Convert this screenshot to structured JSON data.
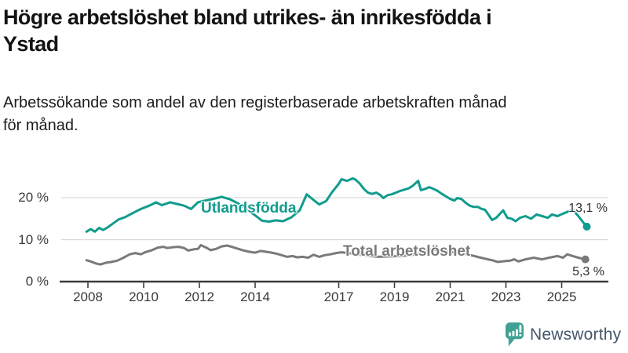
{
  "header": {
    "title_line1": "Högre arbetslöshet bland utrikes- än inrikesfödda i",
    "title_line2": "Ystad",
    "subtitle_line1": "Arbetssökande som andel av den registerbaserade arbetskraften månad",
    "subtitle_line2": "för månad."
  },
  "chart_data": {
    "type": "line",
    "title": "Högre arbetslöshet bland utrikes- än inrikesfödda i Ystad",
    "subtitle": "Arbetssökande som andel av den registerbaserade arbetskraften månad för månad.",
    "x_axis": {
      "ticks": [
        2008,
        2010,
        2012,
        2014,
        2017,
        2019,
        2021,
        2023,
        2025
      ],
      "tick_labels": [
        "2008",
        "2010",
        "2012",
        "2014",
        "2017",
        "2019",
        "2021",
        "2023",
        "2025"
      ],
      "range": [
        2007.8,
        2026.3
      ]
    },
    "y_axis": {
      "ticks": [
        0,
        10,
        20
      ],
      "tick_labels": [
        "0 %",
        "10 %",
        "20 %"
      ],
      "range": [
        0,
        25
      ],
      "gridlines": true
    },
    "legend_position": "inline-labels",
    "series": [
      {
        "id": "utlandsfodda",
        "name": "Utlandsfödda",
        "label": "Utlandsfödda",
        "color": "#109c8e",
        "end_label": "13,1 %",
        "end_value": 13.1,
        "x": [
          2007.95,
          2008.1,
          2008.25,
          2008.4,
          2008.55,
          2008.7,
          2008.85,
          2009.1,
          2009.35,
          2009.6,
          2009.9,
          2010.2,
          2010.45,
          2010.65,
          2010.95,
          2011.2,
          2011.45,
          2011.7,
          2011.95,
          2012.2,
          2012.5,
          2012.8,
          2013.1,
          2013.4,
          2013.7,
          2014.0,
          2014.25,
          2014.5,
          2014.75,
          2015.0,
          2015.3,
          2015.6,
          2015.85,
          2016.05,
          2016.3,
          2016.55,
          2016.75,
          2017.0,
          2017.1,
          2017.3,
          2017.5,
          2017.6,
          2017.75,
          2017.9,
          2018.05,
          2018.2,
          2018.35,
          2018.5,
          2018.6,
          2018.75,
          2018.9,
          2019.05,
          2019.2,
          2019.35,
          2019.5,
          2019.65,
          2019.75,
          2019.85,
          2019.95,
          2020.1,
          2020.25,
          2020.4,
          2020.55,
          2020.7,
          2020.85,
          2021.0,
          2021.15,
          2021.25,
          2021.4,
          2021.55,
          2021.7,
          2021.85,
          2022.0,
          2022.1,
          2022.25,
          2022.4,
          2022.5,
          2022.65,
          2022.9,
          2023.05,
          2023.2,
          2023.35,
          2023.5,
          2023.7,
          2023.9,
          2024.1,
          2024.3,
          2024.5,
          2024.65,
          2024.85,
          2025.05,
          2025.2,
          2025.4,
          2025.6,
          2025.75,
          2025.9
        ],
        "y": [
          11.9,
          12.5,
          11.9,
          12.8,
          12.3,
          12.9,
          13.6,
          14.8,
          15.4,
          16.3,
          17.3,
          18.1,
          18.9,
          18.2,
          18.9,
          18.5,
          18.1,
          17.3,
          18.9,
          19.3,
          19.7,
          20.2,
          19.6,
          18.6,
          17.2,
          15.8,
          14.5,
          14.3,
          14.6,
          14.4,
          15.3,
          17.0,
          20.8,
          19.7,
          18.4,
          19.2,
          21.2,
          23.3,
          24.4,
          24.0,
          24.6,
          24.3,
          23.4,
          22.1,
          21.2,
          20.9,
          21.2,
          20.6,
          19.9,
          20.6,
          20.8,
          21.2,
          21.6,
          21.9,
          22.2,
          22.8,
          23.4,
          24.0,
          21.8,
          22.1,
          22.5,
          22.1,
          21.6,
          20.9,
          20.3,
          19.7,
          19.3,
          19.9,
          19.7,
          18.8,
          18.1,
          17.8,
          17.8,
          17.4,
          17.1,
          15.7,
          14.7,
          15.2,
          17.0,
          15.2,
          15.0,
          14.4,
          15.2,
          15.6,
          15.0,
          16.0,
          15.6,
          15.2,
          16.0,
          15.6,
          16.2,
          16.6,
          17.1,
          15.6,
          14.3,
          13.1
        ]
      },
      {
        "id": "total-arbetsloshet",
        "name": "Total arbetslöshet",
        "label": "Total arbetslöshet",
        "color": "#7a7a7a",
        "end_label": "5,3 %",
        "end_value": 5.3,
        "x": [
          2007.95,
          2008.1,
          2008.3,
          2008.45,
          2008.65,
          2008.85,
          2009.05,
          2009.25,
          2009.5,
          2009.7,
          2009.9,
          2010.05,
          2010.3,
          2010.5,
          2010.7,
          2010.85,
          2011.05,
          2011.25,
          2011.45,
          2011.6,
          2011.8,
          2011.95,
          2012.05,
          2012.25,
          2012.4,
          2012.6,
          2012.8,
          2013.0,
          2013.2,
          2013.4,
          2013.6,
          2013.8,
          2014.0,
          2014.2,
          2014.4,
          2014.6,
          2014.8,
          2015.0,
          2015.15,
          2015.35,
          2015.5,
          2015.7,
          2015.9,
          2016.1,
          2016.3,
          2016.5,
          2016.7,
          2016.9,
          2017.1,
          2017.35,
          2017.6,
          2018.0,
          2018.4,
          2018.8,
          2019.2,
          2019.6,
          2020.0,
          2020.3,
          2020.6,
          2021.0,
          2021.4,
          2021.8,
          2022.1,
          2022.35,
          2022.5,
          2022.7,
          2023.0,
          2023.15,
          2023.3,
          2023.45,
          2023.7,
          2024.0,
          2024.3,
          2024.55,
          2024.85,
          2025.05,
          2025.2,
          2025.4,
          2025.6,
          2025.85
        ],
        "y": [
          5.1,
          4.8,
          4.3,
          4.1,
          4.5,
          4.7,
          5.0,
          5.6,
          6.5,
          6.8,
          6.5,
          7.0,
          7.5,
          8.1,
          8.3,
          8.0,
          8.2,
          8.3,
          8.0,
          7.4,
          7.7,
          7.8,
          8.7,
          8.1,
          7.5,
          7.8,
          8.4,
          8.6,
          8.2,
          7.8,
          7.4,
          7.1,
          6.9,
          7.3,
          7.1,
          6.9,
          6.6,
          6.2,
          5.9,
          6.1,
          5.8,
          5.9,
          5.7,
          6.4,
          5.9,
          6.3,
          6.5,
          6.8,
          7.0,
          6.8,
          6.5,
          6.2,
          5.9,
          6.0,
          6.1,
          6.3,
          6.9,
          7.7,
          7.4,
          7.1,
          6.7,
          6.2,
          5.7,
          5.3,
          5.1,
          4.7,
          4.9,
          5.0,
          5.3,
          4.8,
          5.3,
          5.7,
          5.3,
          5.7,
          6.1,
          5.7,
          6.5,
          6.1,
          5.7,
          5.3
        ]
      }
    ]
  },
  "branding": {
    "logo_text": "Newsworthy",
    "logo_icon": "bar-chart-speech-bubble",
    "logo_color": "#3fa193",
    "logo_text_color": "#44566b"
  },
  "colors": {
    "background": "#ffffff",
    "title": "#131313",
    "subtitle": "#1c1c1c",
    "axis": "#3d3d3d",
    "tick_label": "#3a3a3a",
    "gridline": "#d9d9d9",
    "value_label": "#2e2e2e",
    "series_utlandsfodda": "#109c8e",
    "series_total": "#7a7a7a"
  }
}
